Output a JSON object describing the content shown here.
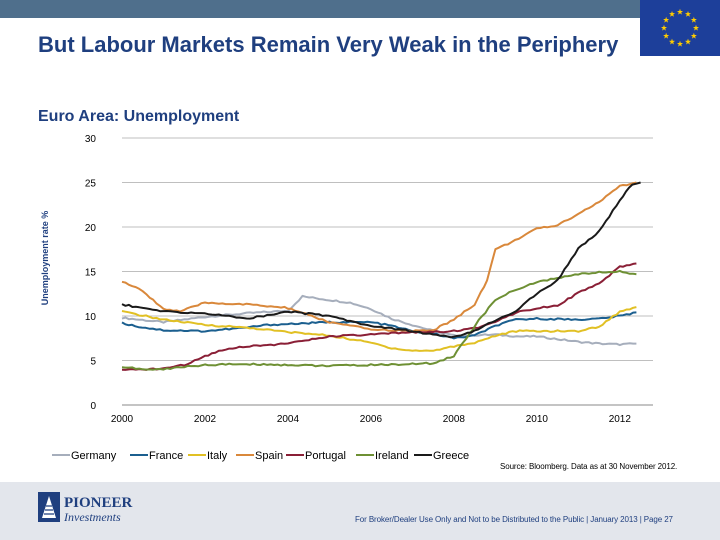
{
  "header": {
    "title": "But Labour Markets Remain Very Weak in the Periphery",
    "subtitle": "Euro Area: Unemployment"
  },
  "colors": {
    "brand": "#1f3f7f",
    "topbar": "#4f6f8c",
    "flag_blue": "#1d3f9a",
    "flag_star": "#ffcc00"
  },
  "chart_data": {
    "type": "line",
    "title": "Euro Area: Unemployment",
    "xlabel": "",
    "ylabel": "Unemployment rate %",
    "xlim": [
      2000,
      2012.8
    ],
    "ylim": [
      0,
      30
    ],
    "yticks": [
      "0",
      "5",
      "10",
      "15",
      "20",
      "25",
      "30"
    ],
    "xticks": [
      "2000",
      "2002",
      "2004",
      "2006",
      "2008",
      "2010",
      "2012"
    ],
    "grid": true,
    "legend_position": "bottom",
    "series": [
      {
        "name": "Germany",
        "color": "#a6aebc",
        "points": [
          [
            2000,
            9.8
          ],
          [
            2001,
            9.3
          ],
          [
            2002,
            9.9
          ],
          [
            2003,
            10.3
          ],
          [
            2004,
            10.6
          ],
          [
            2004.35,
            12.2
          ],
          [
            2005,
            11.8
          ],
          [
            2005.5,
            11.5
          ],
          [
            2006,
            10.8
          ],
          [
            2006.5,
            9.7
          ],
          [
            2007,
            9.0
          ],
          [
            2007.6,
            8.2
          ],
          [
            2008,
            7.8
          ],
          [
            2009,
            7.9
          ],
          [
            2009.6,
            7.7
          ],
          [
            2010,
            7.7
          ],
          [
            2010.5,
            7.4
          ],
          [
            2011,
            7.1
          ],
          [
            2011.5,
            6.9
          ],
          [
            2012,
            6.8
          ],
          [
            2012.4,
            6.9
          ]
        ]
      },
      {
        "name": "France",
        "color": "#1b5f8f",
        "points": [
          [
            2000,
            9.2
          ],
          [
            2000.4,
            8.8
          ],
          [
            2001,
            8.4
          ],
          [
            2002,
            8.3
          ],
          [
            2003,
            8.7
          ],
          [
            2003.5,
            9.0
          ],
          [
            2004,
            9.1
          ],
          [
            2005,
            9.3
          ],
          [
            2006,
            9.3
          ],
          [
            2006.5,
            8.9
          ],
          [
            2007,
            8.3
          ],
          [
            2007.5,
            8.0
          ],
          [
            2008,
            7.5
          ],
          [
            2008.5,
            7.8
          ],
          [
            2009,
            8.9
          ],
          [
            2009.5,
            9.6
          ],
          [
            2010,
            9.7
          ],
          [
            2011,
            9.6
          ],
          [
            2011.5,
            9.7
          ],
          [
            2012,
            10.0
          ],
          [
            2012.4,
            10.4
          ]
        ]
      },
      {
        "name": "Italy",
        "color": "#e1c024",
        "points": [
          [
            2000,
            10.5
          ],
          [
            2001,
            9.6
          ],
          [
            2002,
            9.0
          ],
          [
            2003,
            8.7
          ],
          [
            2004,
            8.2
          ],
          [
            2005,
            7.8
          ],
          [
            2006,
            7.0
          ],
          [
            2006.5,
            6.4
          ],
          [
            2007,
            6.1
          ],
          [
            2007.5,
            6.1
          ],
          [
            2008,
            6.6
          ],
          [
            2008.5,
            7.0
          ],
          [
            2009,
            7.8
          ],
          [
            2009.5,
            8.3
          ],
          [
            2010,
            8.3
          ],
          [
            2011,
            8.3
          ],
          [
            2011.5,
            8.8
          ],
          [
            2012,
            10.5
          ],
          [
            2012.4,
            11.0
          ]
        ]
      },
      {
        "name": "Spain",
        "color": "#d9883b",
        "points": [
          [
            2000,
            13.9
          ],
          [
            2000.5,
            12.8
          ],
          [
            2001,
            10.8
          ],
          [
            2001.4,
            10.5
          ],
          [
            2002,
            11.5
          ],
          [
            2003,
            11.3
          ],
          [
            2004,
            10.9
          ],
          [
            2005,
            9.3
          ],
          [
            2006,
            8.5
          ],
          [
            2007,
            8.3
          ],
          [
            2007.5,
            8.4
          ],
          [
            2008,
            9.6
          ],
          [
            2008.5,
            11.3
          ],
          [
            2008.8,
            14.0
          ],
          [
            2009,
            17.5
          ],
          [
            2009.3,
            18.1
          ],
          [
            2010,
            19.8
          ],
          [
            2010.5,
            20.2
          ],
          [
            2011,
            21.5
          ],
          [
            2011.5,
            22.8
          ],
          [
            2012,
            24.6
          ],
          [
            2012.4,
            25.0
          ]
        ]
      },
      {
        "name": "Portugal",
        "color": "#8a1f36",
        "points": [
          [
            2000,
            3.9
          ],
          [
            2000.5,
            4.0
          ],
          [
            2001,
            4.1
          ],
          [
            2001.5,
            4.5
          ],
          [
            2002,
            5.5
          ],
          [
            2002.5,
            6.3
          ],
          [
            2003,
            6.6
          ],
          [
            2004,
            6.9
          ],
          [
            2005,
            7.7
          ],
          [
            2006,
            7.9
          ],
          [
            2007,
            8.2
          ],
          [
            2007.5,
            8.2
          ],
          [
            2008,
            8.3
          ],
          [
            2008.5,
            8.6
          ],
          [
            2009,
            9.4
          ],
          [
            2009.5,
            10.4
          ],
          [
            2010,
            10.9
          ],
          [
            2010.5,
            11.2
          ],
          [
            2011,
            12.6
          ],
          [
            2011.5,
            13.6
          ],
          [
            2012,
            15.5
          ],
          [
            2012.4,
            15.9
          ]
        ]
      },
      {
        "name": "Ireland",
        "color": "#6e9034",
        "points": [
          [
            2000,
            4.3
          ],
          [
            2000.5,
            4.0
          ],
          [
            2001,
            4.0
          ],
          [
            2001.5,
            4.3
          ],
          [
            2002,
            4.5
          ],
          [
            2003,
            4.6
          ],
          [
            2004,
            4.5
          ],
          [
            2005,
            4.4
          ],
          [
            2006,
            4.5
          ],
          [
            2007,
            4.6
          ],
          [
            2007.5,
            4.7
          ],
          [
            2008,
            5.5
          ],
          [
            2008.3,
            7.5
          ],
          [
            2008.6,
            9.5
          ],
          [
            2009,
            11.8
          ],
          [
            2009.5,
            13.0
          ],
          [
            2010,
            13.8
          ],
          [
            2011,
            14.7
          ],
          [
            2011.5,
            14.9
          ],
          [
            2012,
            15.0
          ],
          [
            2012.4,
            14.7
          ]
        ]
      },
      {
        "name": "Greece",
        "color": "#1a1a1a",
        "points": [
          [
            2000,
            11.3
          ],
          [
            2001,
            10.5
          ],
          [
            2002,
            10.3
          ],
          [
            2003,
            9.7
          ],
          [
            2004,
            10.5
          ],
          [
            2005,
            10.0
          ],
          [
            2006,
            8.9
          ],
          [
            2007,
            8.3
          ],
          [
            2007.5,
            7.9
          ],
          [
            2008,
            7.6
          ],
          [
            2008.5,
            8.3
          ],
          [
            2009,
            9.5
          ],
          [
            2009.5,
            10.6
          ],
          [
            2010,
            12.5
          ],
          [
            2010.5,
            14.0
          ],
          [
            2011,
            17.6
          ],
          [
            2011.5,
            19.5
          ],
          [
            2012,
            23.0
          ],
          [
            2012.3,
            24.8
          ],
          [
            2012.5,
            25.0
          ]
        ]
      }
    ]
  },
  "source": "Source: Bloomberg. Data as at 30 November 2012.",
  "logo": {
    "line1": "PIONEER",
    "line2": "Investments"
  },
  "footer": "For Broker/Dealer Use Only and Not to be Distributed to the Public | January 2013 | Page 27"
}
